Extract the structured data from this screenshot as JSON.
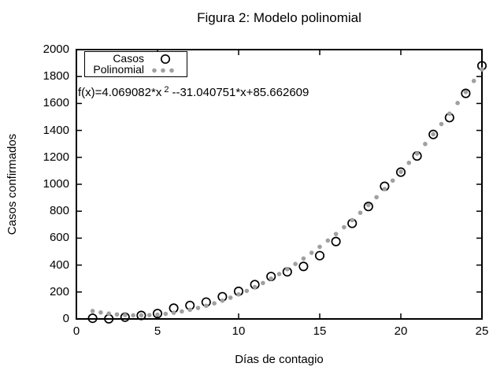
{
  "window": {
    "background": "#ffffff",
    "foreground": "#000000"
  },
  "chart_data": {
    "type": "scatter",
    "title": "Figura 2: Modelo polinomial",
    "xlabel": "Días de contagio",
    "ylabel": "Casos confirmados",
    "xlim": [
      0,
      25
    ],
    "ylim": [
      0,
      2000
    ],
    "xticks": [
      0,
      5,
      10,
      15,
      20,
      25
    ],
    "yticks": [
      0,
      200,
      400,
      600,
      800,
      1000,
      1200,
      1400,
      1600,
      1800,
      2000
    ],
    "grid": false,
    "legend_position": "top-left-inside",
    "legend": [
      {
        "label": "Casos",
        "marker": "open-circle",
        "color": "#000000"
      },
      {
        "label": "Polinomial",
        "marker": "dots",
        "color": "#a0a0a0"
      }
    ],
    "annotation": {
      "prefix": "f(x)=4.069082*x",
      "superscript": "2",
      "suffix": "--31.040751*x+85.662609"
    },
    "series": [
      {
        "name": "Casos",
        "type": "points",
        "marker": "open-circle",
        "color": "#000000",
        "x": [
          1,
          2,
          3,
          4,
          5,
          6,
          7,
          8,
          9,
          10,
          11,
          12,
          13,
          14,
          15,
          16,
          17,
          18,
          19,
          20,
          21,
          22,
          23,
          24,
          25
        ],
        "y": [
          5,
          1,
          13,
          26,
          40,
          80,
          100,
          125,
          165,
          205,
          255,
          315,
          350,
          390,
          470,
          575,
          710,
          835,
          985,
          1090,
          1210,
          1370,
          1495,
          1675,
          1880
        ]
      },
      {
        "name": "Polinomial",
        "type": "function_points",
        "marker": "dot",
        "color": "#a0a0a0",
        "function": "f(x)=4.069082*x^2-31.040751*x+85.662609",
        "coefficients": {
          "x2": 4.069082,
          "x1": -31.040751,
          "x0": 85.662609
        },
        "x_start": 1,
        "x_end": 25,
        "x_step": 0.5
      }
    ]
  }
}
